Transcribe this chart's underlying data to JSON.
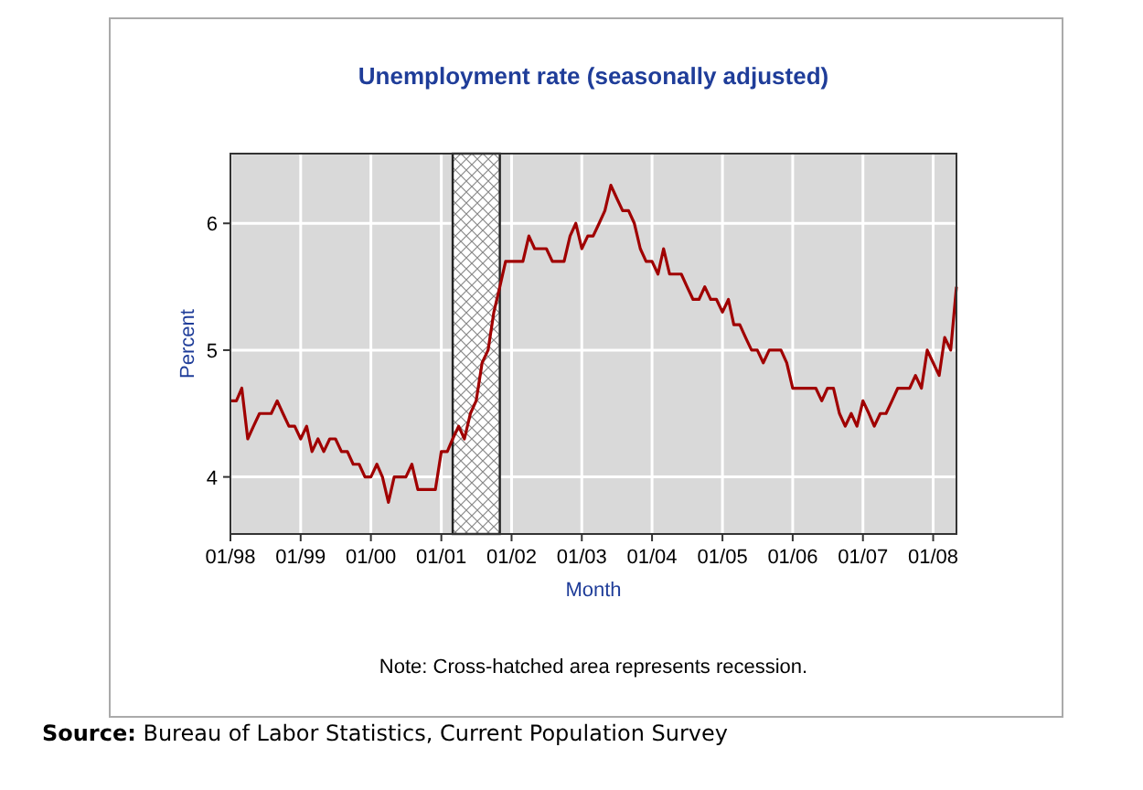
{
  "chart_data": {
    "type": "line",
    "title": "Unemployment rate (seasonally adjusted)",
    "xlabel": "Month",
    "ylabel": "Percent",
    "x": [
      "1998-01",
      "1998-02",
      "1998-03",
      "1998-04",
      "1998-05",
      "1998-06",
      "1998-07",
      "1998-08",
      "1998-09",
      "1998-10",
      "1998-11",
      "1998-12",
      "1999-01",
      "1999-02",
      "1999-03",
      "1999-04",
      "1999-05",
      "1999-06",
      "1999-07",
      "1999-08",
      "1999-09",
      "1999-10",
      "1999-11",
      "1999-12",
      "2000-01",
      "2000-02",
      "2000-03",
      "2000-04",
      "2000-05",
      "2000-06",
      "2000-07",
      "2000-08",
      "2000-09",
      "2000-10",
      "2000-11",
      "2000-12",
      "2001-01",
      "2001-02",
      "2001-03",
      "2001-04",
      "2001-05",
      "2001-06",
      "2001-07",
      "2001-08",
      "2001-09",
      "2001-10",
      "2001-11",
      "2001-12",
      "2002-01",
      "2002-02",
      "2002-03",
      "2002-04",
      "2002-05",
      "2002-06",
      "2002-07",
      "2002-08",
      "2002-09",
      "2002-10",
      "2002-11",
      "2002-12",
      "2003-01",
      "2003-02",
      "2003-03",
      "2003-04",
      "2003-05",
      "2003-06",
      "2003-07",
      "2003-08",
      "2003-09",
      "2003-10",
      "2003-11",
      "2003-12",
      "2004-01",
      "2004-02",
      "2004-03",
      "2004-04",
      "2004-05",
      "2004-06",
      "2004-07",
      "2004-08",
      "2004-09",
      "2004-10",
      "2004-11",
      "2004-12",
      "2005-01",
      "2005-02",
      "2005-03",
      "2005-04",
      "2005-05",
      "2005-06",
      "2005-07",
      "2005-08",
      "2005-09",
      "2005-10",
      "2005-11",
      "2005-12",
      "2006-01",
      "2006-02",
      "2006-03",
      "2006-04",
      "2006-05",
      "2006-06",
      "2006-07",
      "2006-08",
      "2006-09",
      "2006-10",
      "2006-11",
      "2006-12",
      "2007-01",
      "2007-02",
      "2007-03",
      "2007-04",
      "2007-05",
      "2007-06",
      "2007-07",
      "2007-08",
      "2007-09",
      "2007-10",
      "2007-11",
      "2007-12",
      "2008-01",
      "2008-02",
      "2008-03",
      "2008-04",
      "2008-05"
    ],
    "series": [
      {
        "color": "#a00000",
        "values": [
          4.6,
          4.6,
          4.7,
          4.3,
          4.4,
          4.5,
          4.5,
          4.5,
          4.6,
          4.5,
          4.4,
          4.4,
          4.3,
          4.4,
          4.2,
          4.3,
          4.2,
          4.3,
          4.3,
          4.2,
          4.2,
          4.1,
          4.1,
          4.0,
          4.0,
          4.1,
          4.0,
          3.8,
          4.0,
          4.0,
          4.0,
          4.1,
          3.9,
          3.9,
          3.9,
          3.9,
          4.2,
          4.2,
          4.3,
          4.4,
          4.3,
          4.5,
          4.6,
          4.9,
          5.0,
          5.3,
          5.5,
          5.7,
          5.7,
          5.7,
          5.7,
          5.9,
          5.8,
          5.8,
          5.8,
          5.7,
          5.7,
          5.7,
          5.9,
          6.0,
          5.8,
          5.9,
          5.9,
          6.0,
          6.1,
          6.3,
          6.2,
          6.1,
          6.1,
          6.0,
          5.8,
          5.7,
          5.7,
          5.6,
          5.8,
          5.6,
          5.6,
          5.6,
          5.5,
          5.4,
          5.4,
          5.5,
          5.4,
          5.4,
          5.3,
          5.4,
          5.2,
          5.2,
          5.1,
          5.0,
          5.0,
          4.9,
          5.0,
          5.0,
          5.0,
          4.9,
          4.7,
          4.7,
          4.7,
          4.7,
          4.7,
          4.6,
          4.7,
          4.7,
          4.5,
          4.4,
          4.5,
          4.4,
          4.6,
          4.5,
          4.4,
          4.5,
          4.5,
          4.6,
          4.7,
          4.7,
          4.7,
          4.8,
          4.7,
          5.0,
          4.9,
          4.8,
          5.1,
          5.0,
          5.5
        ]
      }
    ],
    "xlim": [
      "1998-01",
      "2008-05"
    ],
    "xticks": [
      {
        "value": "1998-01",
        "label": "01/98"
      },
      {
        "value": "1999-01",
        "label": "01/99"
      },
      {
        "value": "2000-01",
        "label": "01/00"
      },
      {
        "value": "2001-01",
        "label": "01/01"
      },
      {
        "value": "2002-01",
        "label": "01/02"
      },
      {
        "value": "2003-01",
        "label": "01/03"
      },
      {
        "value": "2004-01",
        "label": "01/04"
      },
      {
        "value": "2005-01",
        "label": "01/05"
      },
      {
        "value": "2006-01",
        "label": "01/06"
      },
      {
        "value": "2007-01",
        "label": "01/07"
      },
      {
        "value": "2008-01",
        "label": "01/08"
      }
    ],
    "ylim": [
      3.55,
      6.55
    ],
    "yticks": [
      4,
      5,
      6
    ],
    "grid": true,
    "bands": [
      {
        "axis": "x",
        "from": "2001-03",
        "to": "2001-11"
      }
    ],
    "annotations": [
      "Note: Cross-hatched area represents recession.",
      "Source: Bureau of Labor Statistics, Current Population Survey"
    ]
  }
}
